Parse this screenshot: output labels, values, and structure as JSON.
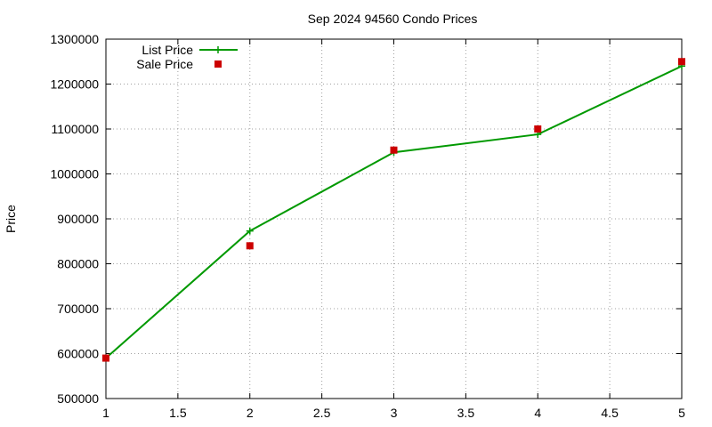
{
  "chart_data": {
    "type": "line",
    "title": "Sep 2024 94560 Condo Prices",
    "xlabel": "",
    "ylabel": "Price",
    "xlim": [
      1,
      5
    ],
    "ylim": [
      500000,
      1300000
    ],
    "x_ticks": [
      "1",
      "1.5",
      "2",
      "2.5",
      "3",
      "3.5",
      "4",
      "4.5",
      "5"
    ],
    "y_ticks": [
      "500000",
      "600000",
      "700000",
      "800000",
      "900000",
      "1000000",
      "1100000",
      "1200000",
      "1300000"
    ],
    "grid": true,
    "legend_position": "top-left",
    "series": [
      {
        "name": "List Price",
        "style": "linespoints",
        "marker": "plus",
        "color": "#009900",
        "x": [
          1,
          2,
          3,
          4,
          5
        ],
        "y": [
          590000,
          873000,
          1048000,
          1088000,
          1240000
        ]
      },
      {
        "name": "Sale Price",
        "style": "points",
        "marker": "square",
        "color": "#cc0000",
        "x": [
          1,
          2,
          3,
          4,
          5
        ],
        "y": [
          590000,
          840000,
          1053000,
          1100000,
          1250000
        ]
      }
    ]
  }
}
